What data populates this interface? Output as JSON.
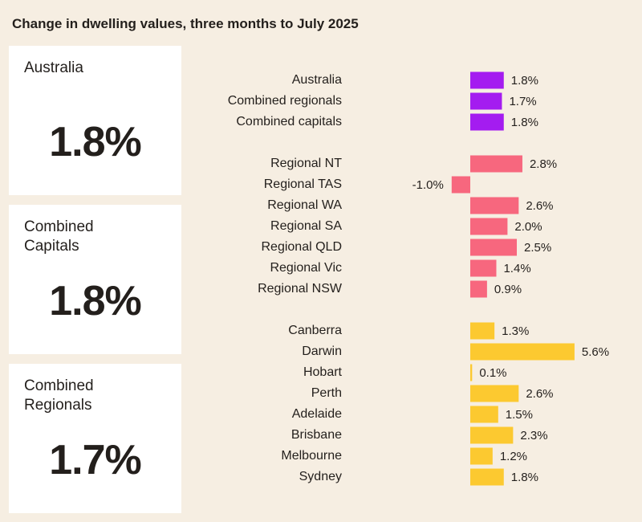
{
  "title": "Change in dwelling values, three months to July 2025",
  "cards": [
    {
      "title": "Australia",
      "value": "1.8%"
    },
    {
      "title": "Combined Capitals",
      "value": "1.8%"
    },
    {
      "title": "Combined Regionals",
      "value": "1.7%"
    }
  ],
  "chart_data": {
    "type": "bar",
    "orientation": "horizontal",
    "groups": [
      {
        "color": "#a41cf0",
        "categories": [
          "Australia",
          "Combined regionals",
          "Combined capitals"
        ],
        "values": [
          1.8,
          1.7,
          1.8
        ],
        "value_labels": [
          "1.8%",
          "1.7%",
          "1.8%"
        ]
      },
      {
        "color": "#f7677e",
        "categories": [
          "Regional NT",
          "Regional TAS",
          "Regional WA",
          "Regional SA",
          "Regional QLD",
          "Regional Vic",
          "Regional NSW"
        ],
        "values": [
          2.8,
          -1.0,
          2.6,
          2.0,
          2.5,
          1.4,
          0.9
        ],
        "value_labels": [
          "2.8%",
          "-1.0%",
          "2.6%",
          "2.0%",
          "2.5%",
          "1.4%",
          "0.9%"
        ]
      },
      {
        "color": "#fcc930",
        "categories": [
          "Canberra",
          "Darwin",
          "Hobart",
          "Perth",
          "Adelaide",
          "Brisbane",
          "Melbourne",
          "Sydney"
        ],
        "values": [
          1.3,
          5.6,
          0.1,
          2.6,
          1.5,
          2.3,
          1.2,
          1.8
        ],
        "value_labels": [
          "1.3%",
          "5.6%",
          "0.1%",
          "2.6%",
          "1.5%",
          "2.3%",
          "1.2%",
          "1.8%"
        ]
      }
    ]
  }
}
